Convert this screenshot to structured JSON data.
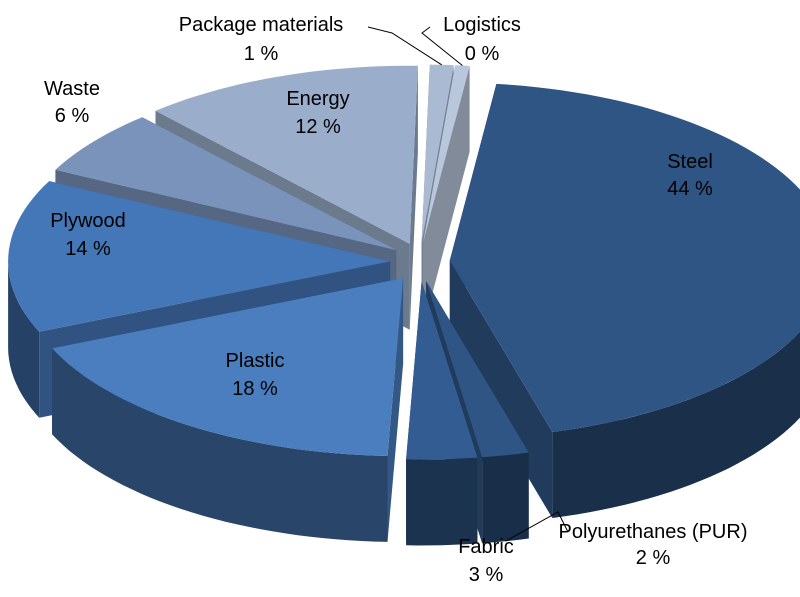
{
  "chart_data": {
    "type": "pie",
    "style": "3d-exploded",
    "slices": [
      {
        "name": "Steel",
        "value": 44,
        "label": "44 %",
        "color": "#2f5585"
      },
      {
        "name": "Polyurethanes (PUR)",
        "value": 2,
        "label": "2 %",
        "color": "#2e5584"
      },
      {
        "name": "Fabric",
        "value": 3,
        "label": "3 %",
        "color": "#335d92"
      },
      {
        "name": "Plastic",
        "value": 18,
        "label": "18 %",
        "color": "#4a7ebf"
      },
      {
        "name": "Plywood",
        "value": 14,
        "label": "14 %",
        "color": "#4477b8"
      },
      {
        "name": "Waste",
        "value": 6,
        "label": "6 %",
        "color": "#7a93bb"
      },
      {
        "name": "Energy",
        "value": 12,
        "label": "12 %",
        "color": "#9aaecb"
      },
      {
        "name": "Package materials",
        "value": 1,
        "label": "1 %",
        "color": "#a9bad2"
      },
      {
        "name": "Logistics",
        "value": 0,
        "label": "0 %",
        "color": "#b9c7dc"
      }
    ]
  }
}
